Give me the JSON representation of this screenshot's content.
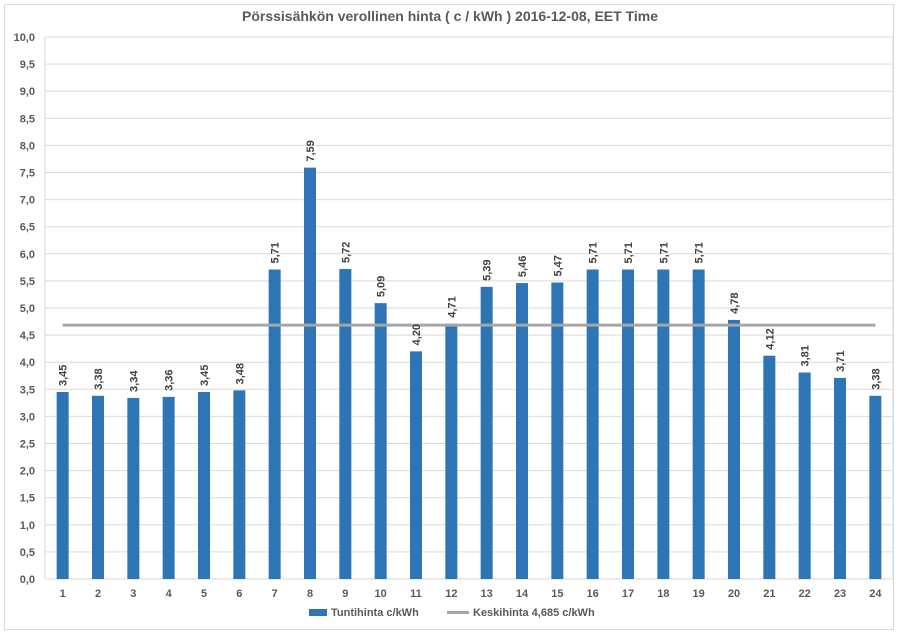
{
  "chart_data": {
    "type": "bar",
    "title": "Pörssisähkön verollinen hinta ( c / kWh ) 2016-12-08, EET Time",
    "categories": [
      "1",
      "2",
      "3",
      "4",
      "5",
      "6",
      "7",
      "8",
      "9",
      "10",
      "11",
      "12",
      "13",
      "14",
      "15",
      "16",
      "17",
      "18",
      "19",
      "20",
      "21",
      "22",
      "23",
      "24"
    ],
    "series": [
      {
        "name": "Tuntihinta c/kWh",
        "type": "bar",
        "color": "#2e75b6",
        "values": [
          3.45,
          3.38,
          3.34,
          3.36,
          3.45,
          3.48,
          5.71,
          7.59,
          5.72,
          5.09,
          4.2,
          4.71,
          5.39,
          5.46,
          5.47,
          5.71,
          5.71,
          5.71,
          5.71,
          4.78,
          4.12,
          3.81,
          3.71,
          3.38
        ],
        "labels": [
          "3,45",
          "3,38",
          "3,34",
          "3,36",
          "3,45",
          "3,48",
          "5,71",
          "7,59",
          "5,72",
          "5,09",
          "4,20",
          "4,71",
          "5,39",
          "5,46",
          "5,47",
          "5,71",
          "5,71",
          "5,71",
          "5,71",
          "4,78",
          "4,12",
          "3,81",
          "3,71",
          "3,38"
        ]
      },
      {
        "name": "Keskihinta 4,685 c/kWh",
        "type": "line",
        "color": "#a6a6a6",
        "value": 4.685
      }
    ],
    "ylim": [
      0,
      10
    ],
    "ytick_labels": [
      "0,0",
      "0,5",
      "1,0",
      "1,5",
      "2,0",
      "2,5",
      "3,0",
      "3,5",
      "4,0",
      "4,5",
      "5,0",
      "5,5",
      "6,0",
      "6,5",
      "7,0",
      "7,5",
      "8,0",
      "8,5",
      "9,0",
      "9,5",
      "10,0"
    ],
    "grid": true,
    "legend_position": "bottom"
  }
}
